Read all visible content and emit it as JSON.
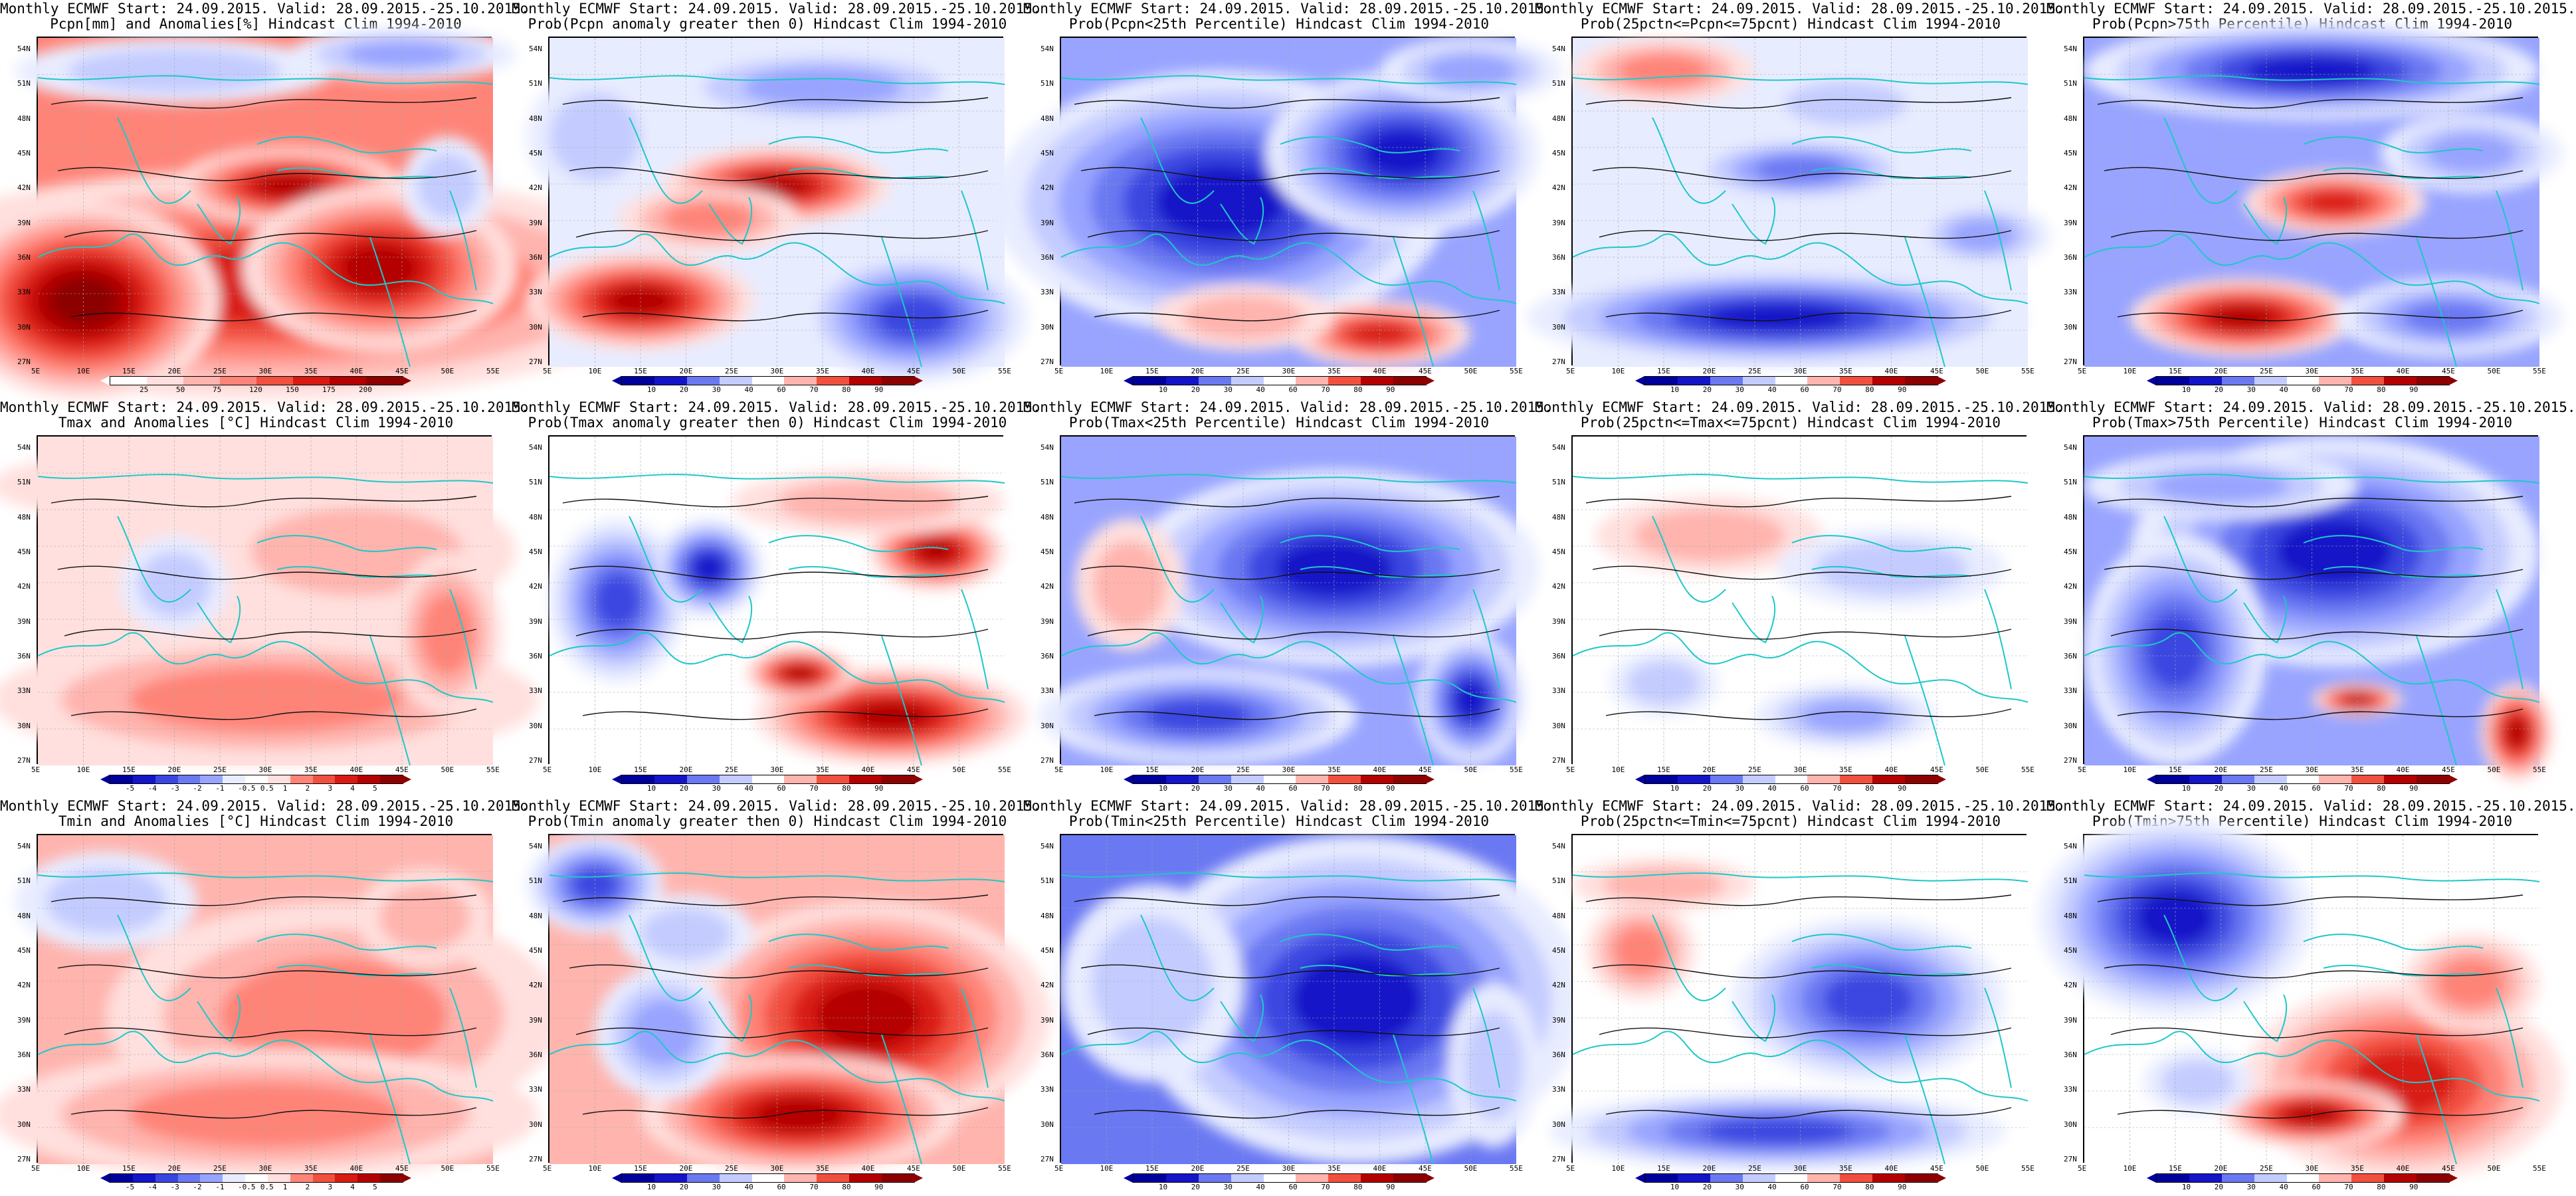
{
  "colors": {
    "coast": "#1ec8c8",
    "contour": "#111111",
    "red_scale": [
      "#ffe0de",
      "#ffb4ae",
      "#ff8478",
      "#f2503f",
      "#d91a12",
      "#b40000",
      "#8c0000"
    ],
    "blue_scale": [
      "#e8ecff",
      "#c4ccff",
      "#98a4ff",
      "#6a78f2",
      "#3a46e0",
      "#1414c8",
      "#00009c"
    ]
  },
  "axes": {
    "lat_labels": [
      "54N",
      "51N",
      "48N",
      "45N",
      "42N",
      "39N",
      "36N",
      "33N",
      "30N",
      "27N"
    ],
    "lon_labels": [
      "5E",
      "10E",
      "15E",
      "20E",
      "25E",
      "30E",
      "35E",
      "40E",
      "45E",
      "50E",
      "55E"
    ]
  },
  "colorbars": {
    "pcpn": [
      "25",
      "50",
      "75",
      "120",
      "150",
      "175",
      "200"
    ],
    "prob": [
      "10",
      "20",
      "30",
      "40",
      "60",
      "70",
      "80",
      "90"
    ],
    "anom": [
      "-5",
      "-4",
      "-3",
      "-2",
      "-1",
      "-0.5",
      "0.5",
      "1",
      "2",
      "3",
      "4",
      "5"
    ]
  },
  "rows": [
    {
      "panels": [
        {
          "title1": "Monthly ECMWF Start: 24.09.2015. Valid: 28.09.2015.-25.10.2015.",
          "title2": "Pcpn[mm] and Anomalies[%] Hindcast Clim 1994-2010",
          "scale": "pcpn",
          "pattern": "precip-anom"
        },
        {
          "title1": "Monthly ECMWF Start: 24.09.2015. Valid: 28.09.2015.-25.10.2015.",
          "title2": "Prob(Pcpn anomaly greater then 0) Hindcast Clim 1994-2010",
          "scale": "prob",
          "pattern": "precip-gt0"
        },
        {
          "title1": "Monthly ECMWF Start: 24.09.2015. Valid: 28.09.2015.-25.10.2015.",
          "title2": "Prob(Pcpn<25th Percentile) Hindcast Clim 1994-2010",
          "scale": "prob",
          "pattern": "precip-lt25"
        },
        {
          "title1": "Monthly ECMWF Start: 24.09.2015. Valid: 28.09.2015.-25.10.2015.",
          "title2": "Prob(25pctn<=Pcpn<=75pcnt) Hindcast Clim 1994-2010",
          "scale": "prob",
          "pattern": "precip-mid"
        },
        {
          "title1": "Monthly ECMWF Start: 24.09.2015. Valid: 28.09.2015.-25.10.2015.",
          "title2": "Prob(Pcpn>75th Percentile) Hindcast Clim 1994-2010",
          "scale": "prob",
          "pattern": "precip-gt75"
        }
      ]
    },
    {
      "panels": [
        {
          "title1": "Monthly ECMWF Start: 24.09.2015. Valid: 28.09.2015.-25.10.2015.",
          "title2": "Tmax and Anomalies [°C] Hindcast Clim 1994-2010",
          "scale": "anom",
          "pattern": "tmax-anom"
        },
        {
          "title1": "Monthly ECMWF Start: 24.09.2015. Valid: 28.09.2015.-25.10.2015.",
          "title2": "Prob(Tmax anomaly greater then 0) Hindcast Clim 1994-2010",
          "scale": "prob",
          "pattern": "tmax-gt0"
        },
        {
          "title1": "Monthly ECMWF Start: 24.09.2015. Valid: 28.09.2015.-25.10.2015.",
          "title2": "Prob(Tmax<25th Percentile) Hindcast Clim 1994-2010",
          "scale": "prob",
          "pattern": "tmax-lt25"
        },
        {
          "title1": "Monthly ECMWF Start: 24.09.2015. Valid: 28.09.2015.-25.10.2015.",
          "title2": "Prob(25pctn<=Tmax<=75pcnt) Hindcast Clim 1994-2010",
          "scale": "prob",
          "pattern": "tmax-mid"
        },
        {
          "title1": "Monthly ECMWF Start: 24.09.2015. Valid: 28.09.2015.-25.10.2015.",
          "title2": "Prob(Tmax>75th Percentile) Hindcast Clim 1994-2010",
          "scale": "prob",
          "pattern": "tmax-gt75"
        }
      ]
    },
    {
      "panels": [
        {
          "title1": "Monthly ECMWF Start: 24.09.2015. Valid: 28.09.2015.-25.10.2015.",
          "title2": "Tmin and Anomalies [°C] Hindcast Clim 1994-2010",
          "scale": "anom",
          "pattern": "tmin-anom"
        },
        {
          "title1": "Monthly ECMWF Start: 24.09.2015. Valid: 28.09.2015.-25.10.2015.",
          "title2": "Prob(Tmin anomaly greater then 0) Hindcast Clim 1994-2010",
          "scale": "prob",
          "pattern": "tmin-gt0"
        },
        {
          "title1": "Monthly ECMWF Start: 24.09.2015. Valid: 28.09.2015.-25.10.2015.",
          "title2": "Prob(Tmin<25th Percentile) Hindcast Clim 1994-2010",
          "scale": "prob",
          "pattern": "tmin-lt25"
        },
        {
          "title1": "Monthly ECMWF Start: 24.09.2015. Valid: 28.09.2015.-25.10.2015.",
          "title2": "Prob(25pctn<=Tmin<=75pcnt) Hindcast Clim 1994-2010",
          "scale": "prob",
          "pattern": "tmin-mid"
        },
        {
          "title1": "Monthly ECMWF Start: 24.09.2015. Valid: 28.09.2015.-25.10.2015.",
          "title2": "Prob(Tmin>75th Percentile) Hindcast Clim 1994-2010",
          "scale": "prob",
          "pattern": "tmin-gt75"
        }
      ]
    }
  ]
}
